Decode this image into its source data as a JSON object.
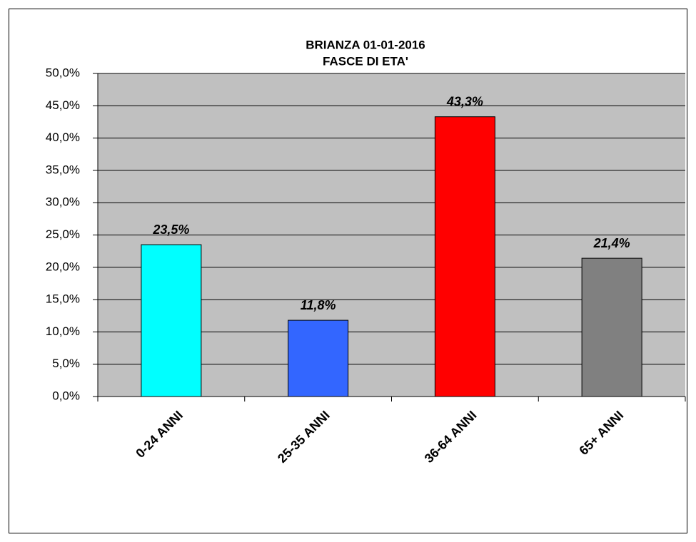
{
  "chart_data": {
    "type": "bar",
    "title": "BRIANZA  01-01-2016",
    "subtitle": "FASCE DI ETA'",
    "categories": [
      "0-24 ANNI",
      "25-35 ANNI",
      "36-64 ANNI",
      "65+ ANNI"
    ],
    "values": [
      23.5,
      11.8,
      43.3,
      21.4
    ],
    "value_labels": [
      "23,5%",
      "11,8%",
      "43,3%",
      "21,4%"
    ],
    "colors": [
      "#00ffff",
      "#3366ff",
      "#ff0000",
      "#808080"
    ],
    "ylim": [
      0,
      50
    ],
    "yticks": [
      {
        "value": 0,
        "label": "0,0%"
      },
      {
        "value": 5,
        "label": "5,0%"
      },
      {
        "value": 10,
        "label": "10,0%"
      },
      {
        "value": 15,
        "label": "15,0%"
      },
      {
        "value": 20,
        "label": "20,0%"
      },
      {
        "value": 25,
        "label": "25,0%"
      },
      {
        "value": 30,
        "label": "30,0%"
      },
      {
        "value": 35,
        "label": "35,0%"
      },
      {
        "value": 40,
        "label": "40,0%"
      },
      {
        "value": 45,
        "label": "45,0%"
      },
      {
        "value": 50,
        "label": "50,0%"
      }
    ],
    "grid": true
  }
}
